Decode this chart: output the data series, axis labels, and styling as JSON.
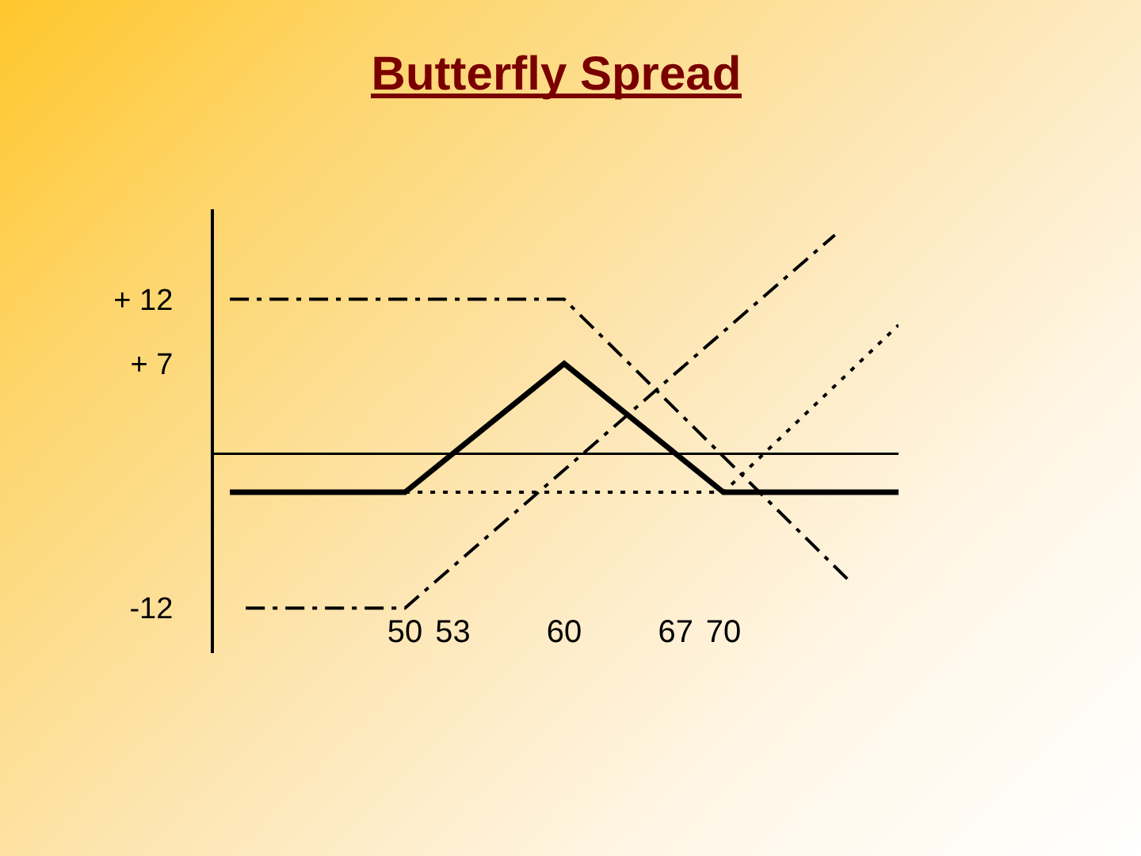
{
  "chart_data": {
    "type": "line",
    "title": "Butterfly Spread",
    "series": [
      {
        "color": "#000000",
        "line_style": "dotted",
        "x": [
          50,
          70,
          81
        ],
        "values": [
          -3,
          -3,
          10
        ]
      },
      {
        "color": "#000000",
        "line_style": "dashed",
        "x": [
          40,
          50,
          77
        ],
        "values": [
          -12,
          -12,
          17
        ]
      },
      {
        "color": "#000000",
        "line_style": "dashed",
        "x": [
          39,
          60,
          78
        ],
        "values": [
          12,
          12,
          -10
        ]
      },
      {
        "color": "#000000",
        "line_style": "solid",
        "x": [
          39,
          50,
          60,
          70,
          81
        ],
        "values": [
          -3,
          -3,
          7,
          -3,
          -3
        ]
      }
    ],
    "xlim": [
      38,
      81
    ],
    "xticks": [
      50,
      53,
      60,
      67,
      70
    ],
    "ylim": [
      -15.5,
      19
    ],
    "yticks": [
      {
        "value": 12,
        "label": "+ 12"
      },
      {
        "value": 7,
        "label": "+ 7"
      },
      -12
    ],
    "ref_lines": [
      {
        "axis": "y",
        "value": 0,
        "color": "#000000"
      }
    ],
    "grid": false
  }
}
